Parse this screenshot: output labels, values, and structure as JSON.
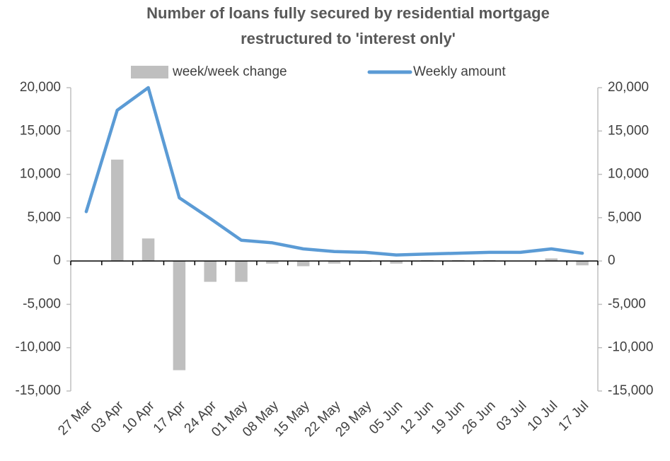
{
  "chart_data": {
    "type": "bar_line",
    "title": [
      "Number of loans fully secured by residential mortgage",
      "restructured to 'interest only'"
    ],
    "categories": [
      "27 Mar",
      "03 Apr",
      "10 Apr",
      "17 Apr",
      "24 Apr",
      "01 May",
      "08 May",
      "15 May",
      "22 May",
      "29 May",
      "05 Jun",
      "12 Jun",
      "19 Jun",
      "26 Jun",
      "03 Jul",
      "10 Jul",
      "17 Jul"
    ],
    "series": [
      {
        "name": "week/week change",
        "type": "bar",
        "color": "#bfbfbf",
        "axis": "y",
        "values": [
          null,
          11700,
          2600,
          -12600,
          -2400,
          -2400,
          -300,
          -600,
          -300,
          -100,
          -300,
          100,
          100,
          100,
          0,
          300,
          -500
        ]
      },
      {
        "name": "Weekly amount",
        "type": "line",
        "color": "#5b9bd5",
        "axis": "y2",
        "values": [
          5700,
          17400,
          20000,
          7300,
          4900,
          2400,
          2100,
          1400,
          1100,
          1000,
          700,
          800,
          900,
          1000,
          1000,
          1400,
          900
        ]
      }
    ],
    "ylim": [
      -15000,
      20000
    ],
    "yticks": [
      {
        "value": -15000,
        "label": "-15,000"
      },
      {
        "value": -10000,
        "label": "-10,000"
      },
      {
        "value": -5000,
        "label": "-5,000"
      },
      0,
      {
        "value": 5000,
        "label": "5,000"
      },
      {
        "value": 10000,
        "label": "10,000"
      },
      {
        "value": 15000,
        "label": "15,000"
      },
      {
        "value": 20000,
        "label": "20,000"
      }
    ],
    "y2lim": [
      -15000,
      20000
    ],
    "y2ticks": [
      {
        "value": -15000,
        "label": "-15,000"
      },
      {
        "value": -10000,
        "label": "-10,000"
      },
      {
        "value": -5000,
        "label": "-5,000"
      },
      0,
      {
        "value": 5000,
        "label": "5,000"
      },
      {
        "value": 10000,
        "label": "10,000"
      },
      {
        "value": 15000,
        "label": "15,000"
      },
      {
        "value": 20000,
        "label": "20,000"
      }
    ],
    "grid": false,
    "legend": "top"
  }
}
